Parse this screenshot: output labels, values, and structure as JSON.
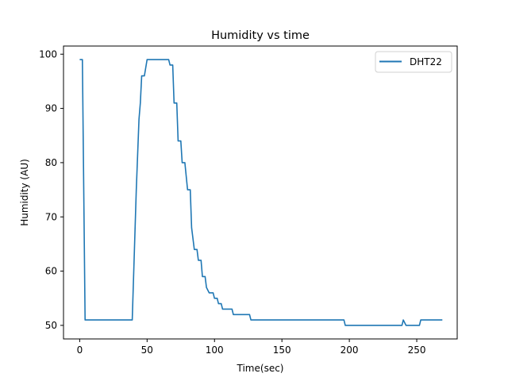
{
  "chart_data": {
    "type": "line",
    "title": "Humidity vs time",
    "xlabel": "Time(sec)",
    "ylabel": "Humidity (AU)",
    "xlim": [
      -12,
      280
    ],
    "ylim": [
      47.5,
      101.5
    ],
    "xticks": [
      0,
      50,
      100,
      150,
      200,
      250
    ],
    "yticks": [
      50,
      60,
      70,
      80,
      90,
      100
    ],
    "grid": false,
    "legend_position": "top-right",
    "series": [
      {
        "name": "DHT22",
        "color": "#1f77b4",
        "points": [
          [
            0,
            99
          ],
          [
            2,
            99
          ],
          [
            4,
            51
          ],
          [
            39,
            51
          ],
          [
            42,
            75
          ],
          [
            44,
            88
          ],
          [
            45,
            91
          ],
          [
            46,
            96
          ],
          [
            48,
            96
          ],
          [
            50,
            99
          ],
          [
            65,
            99
          ],
          [
            66,
            99
          ],
          [
            67,
            98
          ],
          [
            69,
            98
          ],
          [
            70,
            91
          ],
          [
            72,
            91
          ],
          [
            73,
            84
          ],
          [
            75,
            84
          ],
          [
            76,
            80
          ],
          [
            78,
            80
          ],
          [
            80,
            75
          ],
          [
            82,
            75
          ],
          [
            83,
            68
          ],
          [
            85,
            64
          ],
          [
            87,
            64
          ],
          [
            88,
            62
          ],
          [
            90,
            62
          ],
          [
            91,
            59
          ],
          [
            93,
            59
          ],
          [
            94,
            57
          ],
          [
            95,
            56.5
          ],
          [
            96,
            56
          ],
          [
            99,
            56
          ],
          [
            100,
            55
          ],
          [
            102,
            55
          ],
          [
            103,
            54
          ],
          [
            105,
            54
          ],
          [
            106,
            53
          ],
          [
            113,
            53
          ],
          [
            114,
            52
          ],
          [
            126,
            52
          ],
          [
            127,
            51
          ],
          [
            196,
            51
          ],
          [
            197,
            50
          ],
          [
            239,
            50
          ],
          [
            240,
            51
          ],
          [
            242,
            50
          ],
          [
            252,
            50
          ],
          [
            253,
            51
          ],
          [
            269,
            51
          ]
        ]
      }
    ]
  }
}
